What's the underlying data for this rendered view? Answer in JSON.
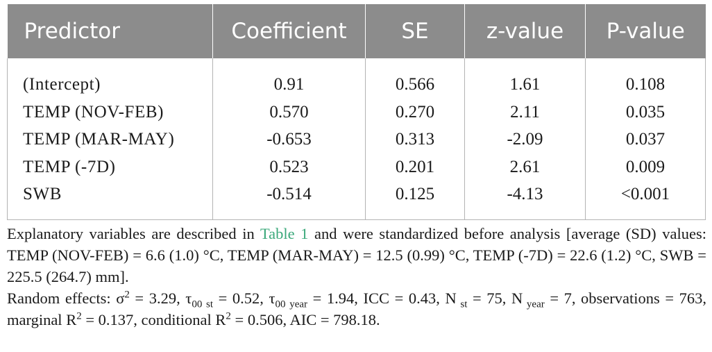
{
  "table": {
    "headers": [
      "Predictor",
      "Coefficient",
      "SE",
      "z-value",
      "P-value"
    ],
    "rows": [
      {
        "predictor": "(Intercept)",
        "coefficient": "0.91",
        "se": "0.566",
        "z": "1.61",
        "p": "0.108"
      },
      {
        "predictor": "TEMP (NOV-FEB)",
        "coefficient": "0.570",
        "se": "0.270",
        "z": "2.11",
        "p": "0.035"
      },
      {
        "predictor": "TEMP (MAR-MAY)",
        "coefficient": "-0.653",
        "se": "0.313",
        "z": "-2.09",
        "p": "0.037"
      },
      {
        "predictor": "TEMP (-7D)",
        "coefficient": "0.523",
        "se": "0.201",
        "z": "2.61",
        "p": "0.009"
      },
      {
        "predictor": "SWB",
        "coefficient": "-0.514",
        "se": "0.125",
        "z": "-4.13",
        "p": "<0.001"
      }
    ]
  },
  "footnote1": {
    "before_link": "Explanatory variables are described in ",
    "link": "Table 1",
    "after_link": " and were standardized before analysis [average (SD) values: TEMP (NOV-FEB) = 6.6 (1.0) °C, TEMP (MAR-MAY) = 12.5 (0.99) °C, TEMP (-7D) = 22.6 (1.2) °C, SWB = 225.5 (264.7) mm]."
  },
  "footnote2": {
    "t1": "Random effects: σ",
    "s1": "2",
    "t2": " = 3.29, τ",
    "s2": "00 st",
    "t3": " = 0.52, τ",
    "s3": "00 year",
    "t4": " = 1.94, ICC = 0.43, N",
    "s4": " st",
    "t5": " = 75, N",
    "s5": " year",
    "t6": " = 7, observations = 763, marginal R",
    "s6": "2",
    "t7": " = 0.137, conditional R",
    "s7": "2",
    "t8": " = 0.506, AIC = 798.18."
  }
}
